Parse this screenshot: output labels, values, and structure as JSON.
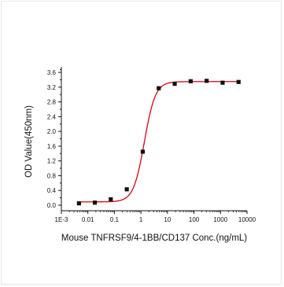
{
  "chart_data": {
    "type": "scatter",
    "title": "",
    "xlabel": "Mouse TNFRSF9/4-1BB/CD137 Conc.(ng/mL)",
    "ylabel": "OD Value(450nm)",
    "xscale": "log",
    "xlim": [
      0.001,
      10000
    ],
    "ylim": [
      -0.15,
      3.75
    ],
    "x_tick_labels": [
      "1E-3",
      "0.01",
      "0.1",
      "1",
      "10",
      "100",
      "1000",
      "10000"
    ],
    "x_tick_values": [
      0.001,
      0.01,
      0.1,
      1,
      10,
      100,
      1000,
      10000
    ],
    "y_tick_labels": [
      "0.0",
      "0.4",
      "0.8",
      "1.2",
      "1.6",
      "2.0",
      "2.4",
      "2.8",
      "3.2",
      "3.6"
    ],
    "y_tick_values": [
      0,
      0.4,
      0.8,
      1.2,
      1.6,
      2.0,
      2.4,
      2.8,
      3.2,
      3.6
    ],
    "grid": false,
    "legend": "none",
    "series": [
      {
        "points": [
          {
            "x": 0.0046,
            "y": 0.05
          },
          {
            "x": 0.0183,
            "y": 0.07
          },
          {
            "x": 0.073,
            "y": 0.16
          },
          {
            "x": 0.293,
            "y": 0.43
          },
          {
            "x": 1.17,
            "y": 1.45
          },
          {
            "x": 4.69,
            "y": 3.17
          },
          {
            "x": 18.75,
            "y": 3.29
          },
          {
            "x": 75,
            "y": 3.36
          },
          {
            "x": 300,
            "y": 3.37
          },
          {
            "x": 1200,
            "y": 3.32
          },
          {
            "x": 4800,
            "y": 3.34
          }
        ],
        "marker_color": "#111111"
      }
    ],
    "fit_curve": {
      "model": "4PL",
      "bottom": 0.09,
      "top": 3.35,
      "ec50": 1.35,
      "hill": 2.1,
      "color": "#e0000f"
    }
  }
}
